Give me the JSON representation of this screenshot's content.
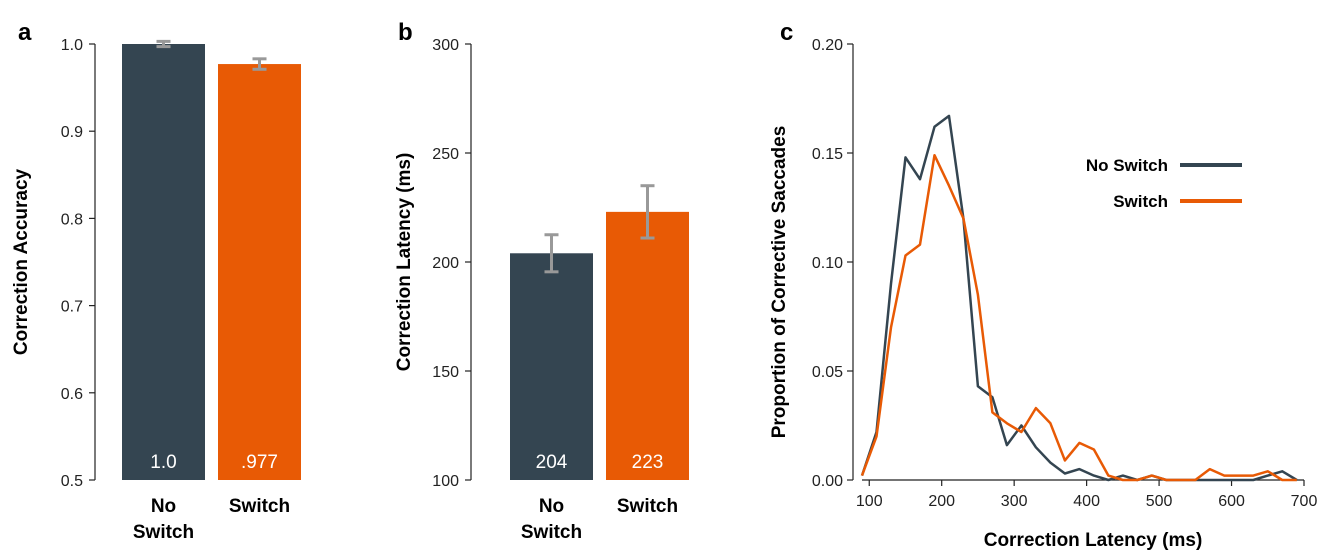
{
  "colors": {
    "no_switch": "#344551",
    "switch": "#e85a05",
    "error_bar": "#999999",
    "axis": "#222222",
    "bar_label": "#ffffff"
  },
  "chart_data": [
    {
      "panel": "a",
      "type": "bar",
      "ylabel": "Correction Accuracy",
      "ylim": [
        0.5,
        1.0
      ],
      "yticks": [
        "0.5",
        "0.6",
        "0.7",
        "0.8",
        "0.9",
        "1.0"
      ],
      "categories": [
        [
          "No",
          "Switch"
        ],
        [
          "Switch"
        ]
      ],
      "values": [
        1.0,
        0.977
      ],
      "value_labels": [
        "1.0",
        ".977"
      ],
      "errors": [
        0.003,
        0.006
      ],
      "grid": false
    },
    {
      "panel": "b",
      "type": "bar",
      "ylabel": "Correction Latency (ms)",
      "ylim": [
        100,
        300
      ],
      "yticks": [
        "100",
        "150",
        "200",
        "250",
        "300"
      ],
      "categories": [
        [
          "No",
          "Switch"
        ],
        [
          "Switch"
        ]
      ],
      "values": [
        204,
        223
      ],
      "value_labels": [
        "204",
        "223"
      ],
      "errors": [
        8.5,
        12
      ],
      "grid": false
    },
    {
      "panel": "c",
      "type": "line",
      "xlabel": "Correction Latency (ms)",
      "ylabel": "Proportion of Corrective Saccades",
      "xlim": [
        90,
        700
      ],
      "ylim": [
        0,
        0.2
      ],
      "xticks": [
        "100",
        "200",
        "300",
        "400",
        "500",
        "600",
        "700"
      ],
      "yticks": [
        "0.00",
        "0.05",
        "0.10",
        "0.15",
        "0.20"
      ],
      "legend_position": "upper-right",
      "grid": false,
      "x": [
        90,
        110,
        130,
        150,
        170,
        190,
        210,
        230,
        250,
        270,
        290,
        310,
        330,
        350,
        370,
        390,
        410,
        430,
        450,
        470,
        490,
        510,
        530,
        550,
        570,
        590,
        610,
        630,
        650,
        670,
        690
      ],
      "series": [
        {
          "name": "No Switch",
          "values": [
            0.002,
            0.022,
            0.09,
            0.148,
            0.138,
            0.162,
            0.167,
            0.12,
            0.043,
            0.038,
            0.016,
            0.025,
            0.015,
            0.008,
            0.003,
            0.005,
            0.002,
            0.0,
            0.002,
            0.0,
            0.002,
            0.0,
            0.0,
            0.0,
            0.0,
            0.0,
            0.0,
            0.0,
            0.002,
            0.004,
            0.0
          ]
        },
        {
          "name": "Switch",
          "values": [
            0.002,
            0.02,
            0.07,
            0.103,
            0.108,
            0.149,
            0.135,
            0.12,
            0.085,
            0.031,
            0.026,
            0.022,
            0.033,
            0.026,
            0.009,
            0.017,
            0.014,
            0.002,
            0.0,
            0.0,
            0.002,
            0.0,
            0.0,
            0.0,
            0.005,
            0.002,
            0.002,
            0.002,
            0.004,
            0.0,
            0.0
          ]
        }
      ]
    }
  ]
}
